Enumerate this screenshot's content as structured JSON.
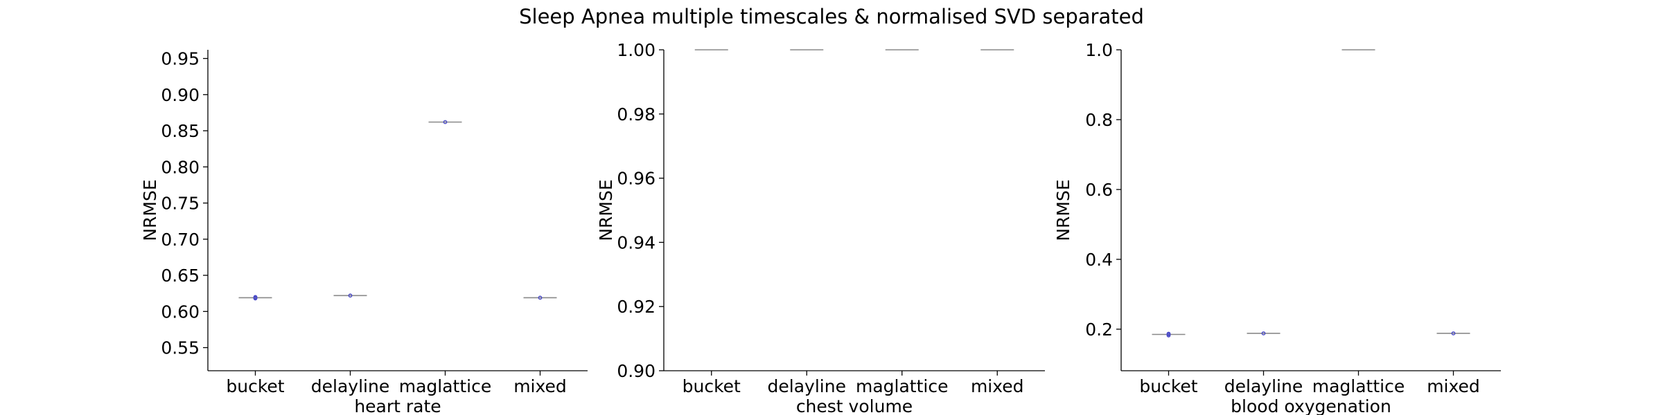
{
  "figure_title": "Sleep Apnea multiple timescales & normalised SVD separated",
  "colors": {
    "median": "#888888",
    "points": "#4b4bc8",
    "axis": "#000000"
  },
  "chart_data": [
    {
      "type": "box",
      "title": "",
      "categories": [
        "bucket",
        "delayline",
        "maglattice",
        "mixed"
      ],
      "xlabel": "heart rate",
      "ylabel": "NRMSE",
      "ylim": [
        0.518,
        0.962
      ],
      "yticks": [
        "0.55",
        "0.60",
        "0.65",
        "0.70",
        "0.75",
        "0.80",
        "0.85",
        "0.90",
        "0.95"
      ],
      "medians": [
        0.619,
        0.622,
        0.862,
        0.619
      ],
      "points": [
        [
          0.618,
          0.619,
          0.62
        ],
        [
          0.622
        ],
        [
          0.862
        ],
        [
          0.619
        ]
      ]
    },
    {
      "type": "box",
      "title": "",
      "categories": [
        "bucket",
        "delayline",
        "maglattice",
        "mixed"
      ],
      "xlabel": "chest volume",
      "ylabel": "NRMSE",
      "ylim": [
        0.9,
        1.0
      ],
      "yticks": [
        "0.90",
        "0.92",
        "0.94",
        "0.96",
        "0.98",
        "1.00"
      ],
      "medians": [
        1.0,
        1.0,
        1.0,
        1.0
      ],
      "points": [
        [],
        [],
        [],
        []
      ]
    },
    {
      "type": "box",
      "title": "",
      "categories": [
        "bucket",
        "delayline",
        "maglattice",
        "mixed"
      ],
      "xlabel": "blood oxygenation",
      "ylabel": "NRMSE",
      "ylim": [
        0.081,
        1.0
      ],
      "yticks": [
        "0.2",
        "0.4",
        "0.6",
        "0.8",
        "1.0"
      ],
      "medians": [
        0.185,
        0.188,
        1.0,
        0.188
      ],
      "points": [
        [
          0.182,
          0.185,
          0.187
        ],
        [
          0.188
        ],
        [],
        [
          0.188
        ]
      ]
    }
  ]
}
